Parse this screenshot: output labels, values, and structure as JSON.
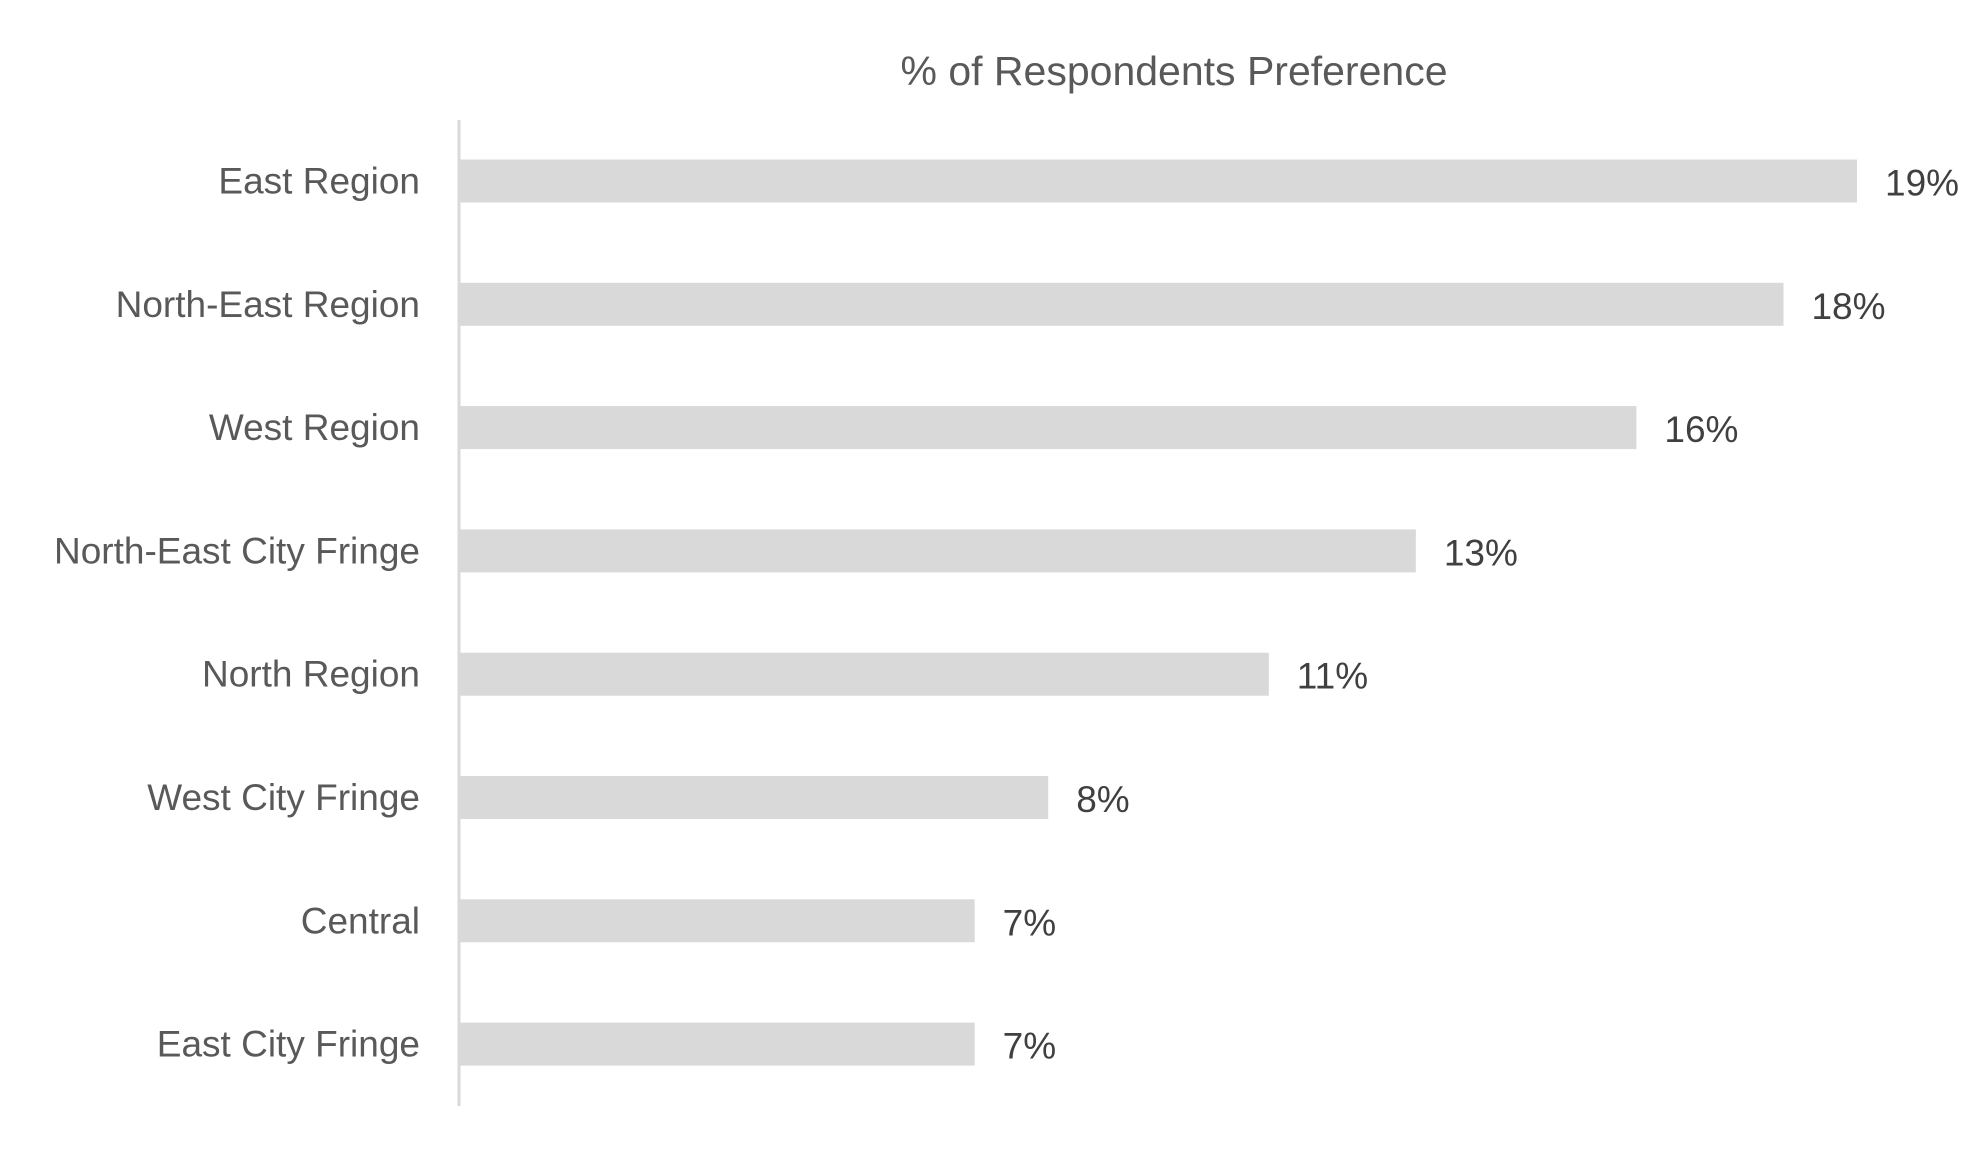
{
  "chart_data": {
    "type": "bar",
    "orientation": "horizontal",
    "title": "% of Respondents Preference",
    "xlabel": "",
    "ylabel": "",
    "categories": [
      "East Region",
      "North-East Region",
      "West Region",
      "North-East City Fringe",
      "North Region",
      "West City Fringe",
      "Central",
      "East City Fringe"
    ],
    "values": [
      19,
      18,
      16,
      13,
      11,
      8,
      7,
      7
    ],
    "value_labels": [
      "19%",
      "18%",
      "16%",
      "13%",
      "11%",
      "8%",
      "7%",
      "7%"
    ],
    "unit": "%",
    "xlim": [
      0,
      19
    ],
    "grid": false,
    "legend": "none",
    "bar_color": "#d9d9d9",
    "axis_color": "#d9d9d9",
    "label_color": "#595959",
    "value_label_color": "#404040"
  }
}
